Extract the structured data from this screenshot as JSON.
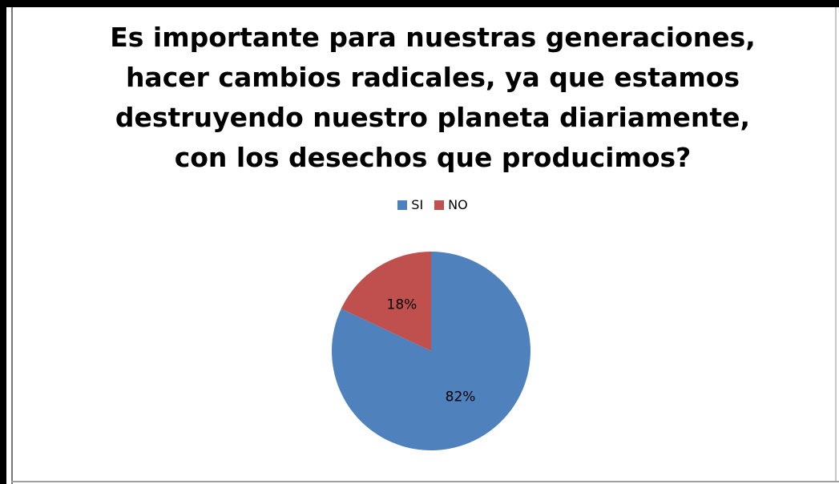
{
  "chart_data": {
    "type": "pie",
    "title_lines": [
      "Es importante para nuestras generaciones,",
      "hacer cambios radicales, ya que estamos",
      "destruyendo nuestro planeta diariamente,",
      "con los desechos que producimos?"
    ],
    "legend_position": "top",
    "slices": [
      {
        "name": "SI",
        "value": 82,
        "label": "82%",
        "color": "#4F81BD"
      },
      {
        "name": "NO",
        "value": 18,
        "label": "18%",
        "color": "#C0504D"
      }
    ]
  }
}
